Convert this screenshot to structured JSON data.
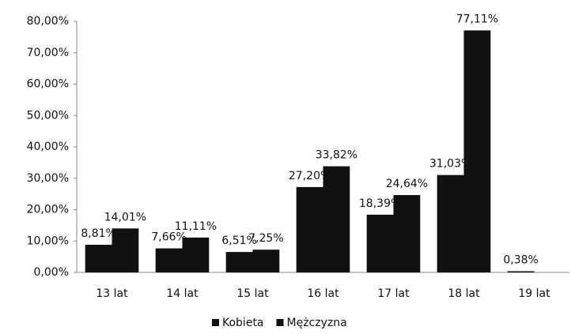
{
  "chart_data": {
    "type": "bar",
    "categories": [
      "13 lat",
      "14 lat",
      "15 lat",
      "16 lat",
      "17 lat",
      "18 lat",
      "19 lat"
    ],
    "series": [
      {
        "name": "Kobieta",
        "color": "#111111",
        "values": [
          8.81,
          7.66,
          6.51,
          27.2,
          18.39,
          31.03,
          0.38
        ],
        "value_labels": [
          "8,81%",
          "7,66%",
          "6,51%",
          "27,20%",
          "18,39%",
          "31,03%",
          "0,38%"
        ]
      },
      {
        "name": "Mężczyzna",
        "color": "#111111",
        "values": [
          14.01,
          11.11,
          7.25,
          33.82,
          24.64,
          77.11,
          null
        ],
        "value_labels": [
          "14,01%",
          "11,11%",
          "7,25%",
          "33,82%",
          "24,64%",
          "77,11%",
          null
        ]
      }
    ],
    "ylim": [
      0,
      80
    ],
    "yticks": [
      {
        "value": 0,
        "label": "0,00%"
      },
      {
        "value": 10,
        "label": "10,00%"
      },
      {
        "value": 20,
        "label": "20,00%"
      },
      {
        "value": 30,
        "label": "30,00%"
      },
      {
        "value": 40,
        "label": "40,00%"
      },
      {
        "value": 50,
        "label": "50,00%"
      },
      {
        "value": 60,
        "label": "60,00%"
      },
      {
        "value": 70,
        "label": "70,00%"
      },
      {
        "value": 80,
        "label": "80,00%"
      }
    ],
    "legend": "bottom"
  }
}
